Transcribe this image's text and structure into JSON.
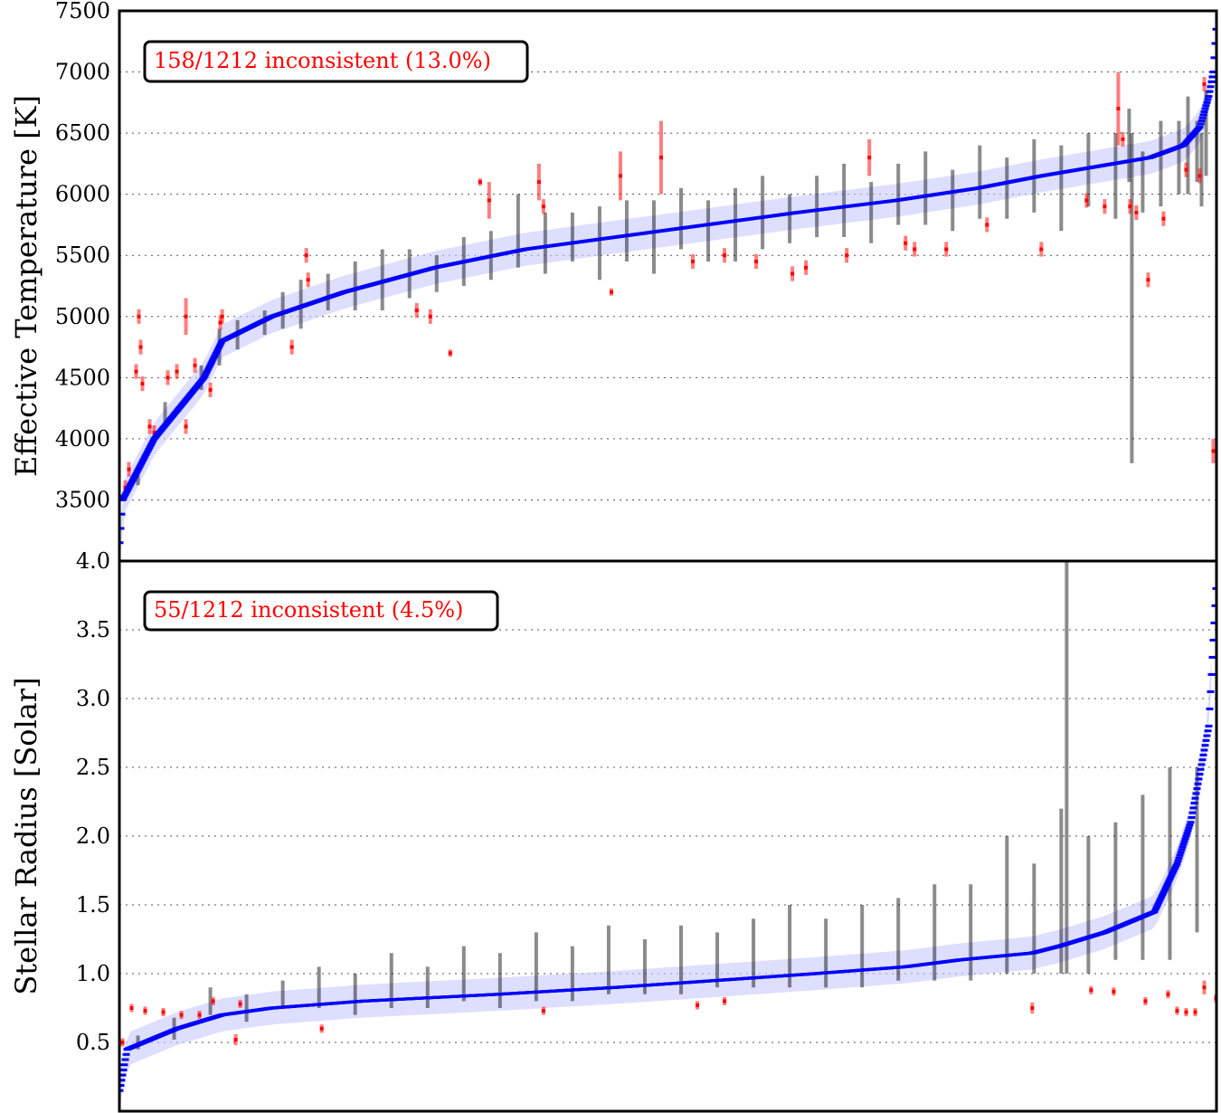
{
  "chart_data": [
    {
      "type": "scatter",
      "ylabel": "Effective Temperature [K]",
      "annotation": "158/1212 inconsistent (13.0%)",
      "ylim": [
        3000,
        7500
      ],
      "yticks": [
        3500,
        4000,
        4500,
        5000,
        5500,
        6000,
        6500,
        7000,
        7500
      ],
      "grid": true,
      "n_stars": 1212,
      "colors": {
        "reference": "#0000ff",
        "consistent": "#000000",
        "inconsistent": "#ff0000",
        "band": "#c8c8ff"
      },
      "reference_curve": [
        [
          0,
          3150
        ],
        [
          3,
          3500
        ],
        [
          38,
          4000
        ],
        [
          93,
          4500
        ],
        [
          113,
          4800
        ],
        [
          168,
          5000
        ],
        [
          248,
          5200
        ],
        [
          348,
          5400
        ],
        [
          448,
          5550
        ],
        [
          548,
          5650
        ],
        [
          648,
          5750
        ],
        [
          748,
          5850
        ],
        [
          858,
          5950
        ],
        [
          948,
          6050
        ],
        [
          1018,
          6150
        ],
        [
          1098,
          6250
        ],
        [
          1138,
          6300
        ],
        [
          1175,
          6400
        ],
        [
          1193,
          6550
        ],
        [
          1203,
          6800
        ],
        [
          1208,
          7000
        ],
        [
          1211,
          7350
        ]
      ],
      "consistent_points": [
        [
          20,
          3700,
          80
        ],
        [
          50,
          4200,
          100
        ],
        [
          90,
          4500,
          100
        ],
        [
          110,
          4750,
          150
        ],
        [
          130,
          4850,
          120
        ],
        [
          160,
          4950,
          100
        ],
        [
          180,
          5050,
          150
        ],
        [
          200,
          5100,
          200
        ],
        [
          230,
          5200,
          150
        ],
        [
          260,
          5250,
          200
        ],
        [
          290,
          5300,
          250
        ],
        [
          320,
          5350,
          200
        ],
        [
          350,
          5350,
          150
        ],
        [
          380,
          5450,
          200
        ],
        [
          410,
          5500,
          200
        ],
        [
          440,
          5700,
          300
        ],
        [
          470,
          5600,
          250
        ],
        [
          500,
          5650,
          200
        ],
        [
          530,
          5600,
          300
        ],
        [
          560,
          5700,
          250
        ],
        [
          590,
          5650,
          300
        ],
        [
          620,
          5800,
          250
        ],
        [
          650,
          5700,
          250
        ],
        [
          680,
          5750,
          300
        ],
        [
          710,
          5850,
          300
        ],
        [
          740,
          5800,
          200
        ],
        [
          770,
          5900,
          250
        ],
        [
          800,
          5950,
          300
        ],
        [
          830,
          5850,
          250
        ],
        [
          860,
          6000,
          250
        ],
        [
          890,
          6050,
          300
        ],
        [
          920,
          5950,
          250
        ],
        [
          950,
          6100,
          300
        ],
        [
          980,
          6050,
          250
        ],
        [
          1010,
          6150,
          300
        ],
        [
          1040,
          6050,
          350
        ],
        [
          1070,
          6200,
          300
        ],
        [
          1100,
          6150,
          350
        ],
        [
          1115,
          6400,
          300
        ],
        [
          1118,
          5150,
          1350
        ],
        [
          1130,
          6100,
          250
        ],
        [
          1150,
          6250,
          350
        ],
        [
          1170,
          6300,
          300
        ],
        [
          1180,
          6400,
          400
        ],
        [
          1190,
          6350,
          250
        ],
        [
          1195,
          6200,
          300
        ],
        [
          1200,
          6500,
          350
        ]
      ],
      "inconsistent_points": [
        [
          6,
          3600,
          60
        ],
        [
          10,
          3750,
          60
        ],
        [
          21,
          5000,
          60
        ],
        [
          23,
          4750,
          60
        ],
        [
          18,
          4550,
          60
        ],
        [
          25,
          4450,
          60
        ],
        [
          33,
          4100,
          60
        ],
        [
          38,
          4050,
          60
        ],
        [
          53,
          4500,
          60
        ],
        [
          63,
          4550,
          60
        ],
        [
          73,
          5000,
          150
        ],
        [
          73,
          4100,
          60
        ],
        [
          83,
          4600,
          60
        ],
        [
          100,
          4400,
          60
        ],
        [
          111,
          4950,
          60
        ],
        [
          113,
          5000,
          60
        ],
        [
          190,
          4750,
          60
        ],
        [
          206,
          5500,
          60
        ],
        [
          208,
          5300,
          60
        ],
        [
          328,
          5050,
          60
        ],
        [
          343,
          5000,
          60
        ],
        [
          365,
          4700,
          30
        ],
        [
          398,
          6100,
          30
        ],
        [
          408,
          5950,
          150
        ],
        [
          463,
          6100,
          150
        ],
        [
          468,
          5900,
          60
        ],
        [
          543,
          5200,
          30
        ],
        [
          553,
          6150,
          200
        ],
        [
          598,
          6300,
          300
        ],
        [
          633,
          5450,
          60
        ],
        [
          668,
          5500,
          60
        ],
        [
          703,
          5450,
          60
        ],
        [
          743,
          5350,
          60
        ],
        [
          758,
          5400,
          60
        ],
        [
          803,
          5500,
          60
        ],
        [
          828,
          6300,
          150
        ],
        [
          868,
          5600,
          60
        ],
        [
          878,
          5550,
          60
        ],
        [
          913,
          5550,
          60
        ],
        [
          958,
          5750,
          60
        ],
        [
          1018,
          5550,
          60
        ],
        [
          1068,
          5950,
          60
        ],
        [
          1088,
          5900,
          60
        ],
        [
          1103,
          6700,
          300
        ],
        [
          1108,
          6450,
          60
        ],
        [
          1116,
          5900,
          60
        ],
        [
          1123,
          5850,
          60
        ],
        [
          1136,
          5300,
          60
        ],
        [
          1153,
          5800,
          60
        ],
        [
          1178,
          6200,
          60
        ],
        [
          1193,
          6150,
          60
        ],
        [
          1208,
          3900,
          100
        ],
        [
          1198,
          6900,
          60
        ]
      ]
    },
    {
      "type": "scatter",
      "ylabel": "Stellar Radius [Solar]",
      "annotation": "55/1212 inconsistent (4.5%)",
      "ylim": [
        0,
        4.0
      ],
      "yticks": [
        0.5,
        1.0,
        1.5,
        2.0,
        2.5,
        3.0,
        3.5,
        4.0
      ],
      "grid": true,
      "n_stars": 1212,
      "colors": {
        "reference": "#0000ff",
        "consistent": "#000000",
        "inconsistent": "#ff0000",
        "band": "#c8c8ff"
      },
      "reference_curve": [
        [
          0,
          0.15
        ],
        [
          8,
          0.45
        ],
        [
          63,
          0.6
        ],
        [
          113,
          0.7
        ],
        [
          168,
          0.75
        ],
        [
          268,
          0.8
        ],
        [
          418,
          0.85
        ],
        [
          548,
          0.9
        ],
        [
          658,
          0.95
        ],
        [
          768,
          1.0
        ],
        [
          868,
          1.05
        ],
        [
          928,
          1.1
        ],
        [
          1008,
          1.15
        ],
        [
          1038,
          1.2
        ],
        [
          1088,
          1.3
        ],
        [
          1143,
          1.45
        ],
        [
          1168,
          1.8
        ],
        [
          1183,
          2.1
        ],
        [
          1203,
          2.8
        ],
        [
          1211,
          3.8
        ]
      ],
      "consistent_points": [
        [
          20,
          0.5,
          0.05
        ],
        [
          60,
          0.6,
          0.08
        ],
        [
          100,
          0.8,
          0.1
        ],
        [
          140,
          0.75,
          0.1
        ],
        [
          180,
          0.85,
          0.1
        ],
        [
          220,
          0.9,
          0.15
        ],
        [
          260,
          0.85,
          0.15
        ],
        [
          300,
          0.95,
          0.2
        ],
        [
          340,
          0.9,
          0.15
        ],
        [
          380,
          1.0,
          0.2
        ],
        [
          420,
          0.95,
          0.2
        ],
        [
          460,
          1.05,
          0.25
        ],
        [
          500,
          1.0,
          0.2
        ],
        [
          540,
          1.1,
          0.25
        ],
        [
          580,
          1.05,
          0.2
        ],
        [
          620,
          1.1,
          0.25
        ],
        [
          660,
          1.1,
          0.2
        ],
        [
          700,
          1.15,
          0.25
        ],
        [
          740,
          1.2,
          0.3
        ],
        [
          780,
          1.15,
          0.25
        ],
        [
          820,
          1.2,
          0.3
        ],
        [
          860,
          1.25,
          0.3
        ],
        [
          900,
          1.3,
          0.35
        ],
        [
          940,
          1.3,
          0.35
        ],
        [
          980,
          1.5,
          0.5
        ],
        [
          1010,
          1.4,
          0.4
        ],
        [
          1040,
          1.6,
          0.6
        ],
        [
          1046,
          2.5,
          1.5
        ],
        [
          1070,
          1.5,
          0.5
        ],
        [
          1100,
          1.6,
          0.5
        ],
        [
          1130,
          1.7,
          0.6
        ],
        [
          1160,
          1.8,
          0.7
        ],
        [
          1190,
          1.9,
          0.6
        ]
      ],
      "inconsistent_points": [
        [
          3,
          0.5,
          0.03
        ],
        [
          13,
          0.75,
          0.03
        ],
        [
          28,
          0.73,
          0.03
        ],
        [
          48,
          0.72,
          0.03
        ],
        [
          68,
          0.7,
          0.03
        ],
        [
          88,
          0.7,
          0.03
        ],
        [
          103,
          0.8,
          0.03
        ],
        [
          128,
          0.52,
          0.04
        ],
        [
          133,
          0.78,
          0.03
        ],
        [
          223,
          0.6,
          0.03
        ],
        [
          468,
          0.73,
          0.03
        ],
        [
          638,
          0.77,
          0.03
        ],
        [
          668,
          0.8,
          0.03
        ],
        [
          1008,
          0.75,
          0.04
        ],
        [
          1073,
          0.88,
          0.03
        ],
        [
          1098,
          0.87,
          0.03
        ],
        [
          1133,
          0.8,
          0.03
        ],
        [
          1158,
          0.85,
          0.03
        ],
        [
          1168,
          0.73,
          0.03
        ],
        [
          1178,
          0.72,
          0.03
        ],
        [
          1188,
          0.72,
          0.03
        ],
        [
          1198,
          0.9,
          0.05
        ],
        [
          1211,
          0.82,
          0.03
        ]
      ]
    }
  ]
}
